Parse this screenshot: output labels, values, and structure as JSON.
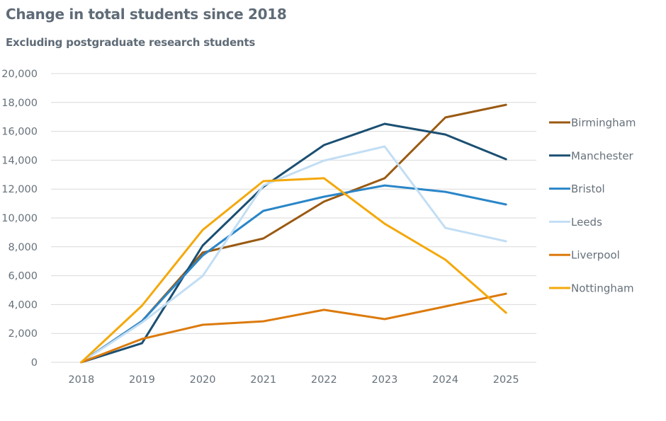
{
  "chart_data": {
    "type": "line",
    "title": "Change in total students since 2018",
    "subtitle": "Excluding postgraduate research students",
    "xlabel": "",
    "ylabel": "",
    "x": [
      "2018",
      "2019",
      "2020",
      "2021",
      "2022",
      "2023",
      "2024",
      "2025"
    ],
    "ylim": [
      0,
      20000
    ],
    "yticks": [
      0,
      2000,
      4000,
      6000,
      8000,
      10000,
      12000,
      14000,
      16000,
      18000,
      20000
    ],
    "ytick_labels": [
      "0",
      "2,000",
      "4,000",
      "6,000",
      "8,000",
      "10,000",
      "12,000",
      "14,000",
      "16,000",
      "18,000",
      "20,000"
    ],
    "grid": true,
    "legend_position": "right",
    "series": [
      {
        "name": "Birmingham",
        "color": "#9a5a12",
        "values": [
          0,
          2850,
          7600,
          8580,
          11130,
          12750,
          16960,
          17840
        ]
      },
      {
        "name": "Manchester",
        "color": "#1b4f72",
        "values": [
          0,
          1320,
          8090,
          12150,
          15050,
          16520,
          15780,
          14070
        ]
      },
      {
        "name": "Bristol",
        "color": "#2a86c8",
        "values": [
          0,
          2850,
          7400,
          10490,
          11470,
          12250,
          11810,
          10930
        ]
      },
      {
        "name": "Leeds",
        "color": "#c2def4",
        "values": [
          0,
          2750,
          5980,
          12250,
          13970,
          14950,
          9310,
          8380
        ]
      },
      {
        "name": "Liverpool",
        "color": "#dc7a0c",
        "values": [
          0,
          1620,
          2600,
          2840,
          3630,
          2990,
          3870,
          4750
        ]
      },
      {
        "name": "Nottingham",
        "color": "#f4a80a",
        "values": [
          0,
          3920,
          9170,
          12550,
          12750,
          9600,
          7110,
          3430
        ]
      }
    ]
  }
}
